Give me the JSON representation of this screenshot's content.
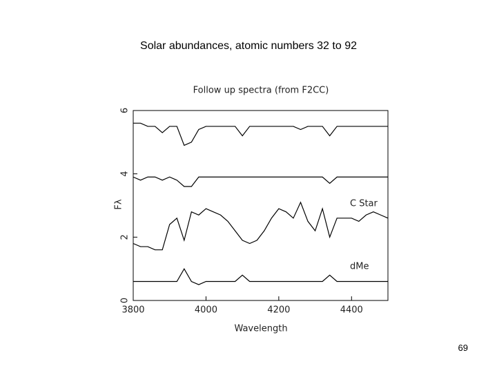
{
  "slide": {
    "title": "Solar abundances, atomic numbers 32 to 92",
    "page_number": "69"
  },
  "chart_data": {
    "type": "line",
    "title": "Follow up spectra (from F2CC)",
    "x_label": "Wavelength",
    "y_label": "Fλ",
    "x": [
      3800,
      3820,
      3840,
      3860,
      3880,
      3900,
      3920,
      3940,
      3960,
      3980,
      4000,
      4020,
      4040,
      4060,
      4080,
      4100,
      4120,
      4140,
      4160,
      4180,
      4200,
      4220,
      4240,
      4260,
      4280,
      4300,
      4320,
      4340,
      4360,
      4380,
      4400,
      4420,
      4440,
      4460,
      4480,
      4500
    ],
    "series": [
      {
        "color": "#000000",
        "values": [
          5.6,
          5.6,
          5.5,
          5.5,
          5.3,
          5.5,
          5.5,
          4.9,
          5.0,
          5.4,
          5.5,
          5.5,
          5.5,
          5.5,
          5.5,
          5.2,
          5.5,
          5.5,
          5.5,
          5.5,
          5.5,
          5.5,
          5.5,
          5.4,
          5.5,
          5.5,
          5.5,
          5.2,
          5.5,
          5.5,
          5.5,
          5.5,
          5.5,
          5.5,
          5.5,
          5.5
        ]
      },
      {
        "color": "#000000",
        "values": [
          3.9,
          3.8,
          3.9,
          3.9,
          3.8,
          3.9,
          3.8,
          3.6,
          3.6,
          3.9,
          3.9,
          3.9,
          3.9,
          3.9,
          3.9,
          3.9,
          3.9,
          3.9,
          3.9,
          3.9,
          3.9,
          3.9,
          3.9,
          3.9,
          3.9,
          3.9,
          3.9,
          3.7,
          3.9,
          3.9,
          3.9,
          3.9,
          3.9,
          3.9,
          3.9,
          3.9
        ]
      },
      {
        "color": "#000000",
        "values": [
          1.8,
          1.7,
          1.7,
          1.6,
          1.6,
          2.4,
          2.6,
          1.9,
          2.8,
          2.7,
          2.9,
          2.8,
          2.7,
          2.5,
          2.2,
          1.9,
          1.8,
          1.9,
          2.2,
          2.6,
          2.9,
          2.8,
          2.6,
          3.1,
          2.5,
          2.2,
          2.9,
          2.0,
          2.6,
          2.6,
          2.6,
          2.5,
          2.7,
          2.8,
          2.7,
          2.6
        ]
      },
      {
        "color": "#000000",
        "values": [
          0.6,
          0.6,
          0.6,
          0.6,
          0.6,
          0.6,
          0.6,
          1.0,
          0.6,
          0.5,
          0.6,
          0.6,
          0.6,
          0.6,
          0.6,
          0.8,
          0.6,
          0.6,
          0.6,
          0.6,
          0.6,
          0.6,
          0.6,
          0.6,
          0.6,
          0.6,
          0.6,
          0.8,
          0.6,
          0.6,
          0.6,
          0.6,
          0.6,
          0.6,
          0.6,
          0.6
        ]
      }
    ],
    "annotations": [
      "C Star",
      "dMe"
    ],
    "xlim": [
      3800,
      4500
    ],
    "ylim": [
      0,
      6
    ],
    "xticks": [
      3800,
      4000,
      4200,
      4400
    ],
    "yticks": [
      0,
      2,
      4,
      6
    ]
  }
}
